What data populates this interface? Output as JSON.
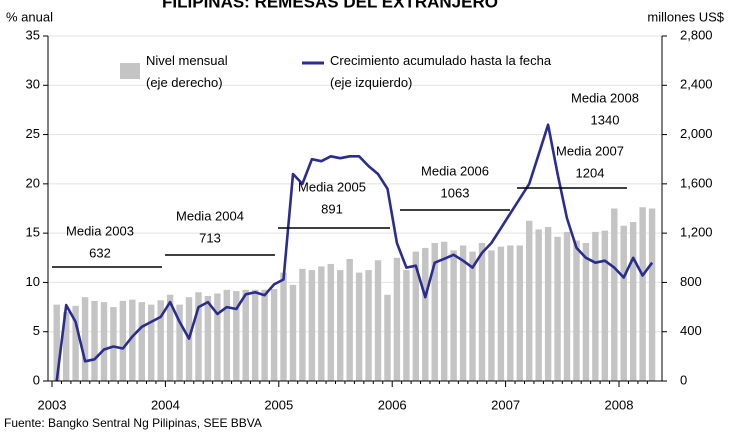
{
  "chart_data": {
    "type": "combo",
    "title": "FILIPINAS: REMESAS DEL EXTRANJERO",
    "y_label": "% anual",
    "y2_label": "millones US$",
    "source": "Fuente: Bangko Sentral Ng Pilipinas, SEE BBVA",
    "categories": [
      "2003",
      null,
      null,
      null,
      null,
      null,
      null,
      null,
      null,
      null,
      null,
      null,
      "2004",
      null,
      null,
      null,
      null,
      null,
      null,
      null,
      null,
      null,
      null,
      null,
      "2005",
      null,
      null,
      null,
      null,
      null,
      null,
      null,
      null,
      null,
      null,
      null,
      "2006",
      null,
      null,
      null,
      null,
      null,
      null,
      null,
      null,
      null,
      null,
      null,
      "2007",
      null,
      null,
      null,
      null,
      null,
      null,
      null,
      null,
      null,
      null,
      null,
      "2008",
      null,
      null,
      null
    ],
    "series": [
      {
        "name": "Nivel mensual (eje derecho)",
        "type": "bar",
        "axis": "y2",
        "color": "#c4c4c4",
        "values": [
          620,
          560,
          610,
          680,
          650,
          640,
          600,
          650,
          660,
          640,
          620,
          655,
          700,
          620,
          680,
          720,
          690,
          710,
          740,
          730,
          740,
          740,
          740,
          746,
          880,
          780,
          910,
          900,
          930,
          950,
          900,
          990,
          880,
          900,
          980,
          700,
          1000,
          900,
          1050,
          1080,
          1120,
          1130,
          1060,
          1100,
          1050,
          1120,
          1060,
          1090,
          1100,
          1100,
          1300,
          1230,
          1250,
          1170,
          1210,
          1140,
          1120,
          1210,
          1220,
          1400,
          1260,
          1290,
          1410,
          1400
        ]
      },
      {
        "name": "Crecimiento acumulado hasta la fecha (eje izquierdo)",
        "type": "line",
        "color": "#2b2d8e",
        "values": [
          0,
          7.7,
          6,
          2,
          2.2,
          3.2,
          3.5,
          3.3,
          4.5,
          5.5,
          6,
          6.5,
          8,
          6,
          4.3,
          7.5,
          8,
          6.8,
          7.5,
          7.3,
          8.8,
          9,
          8.7,
          9.8,
          10.3,
          21,
          20,
          22.5,
          22.3,
          22.8,
          22.6,
          22.8,
          22.8,
          21.8,
          21,
          19.5,
          14,
          11.5,
          11.7,
          8.5,
          12,
          12.4,
          12.8,
          12.2,
          11.5,
          13,
          14,
          15.5,
          17,
          18.5,
          20,
          23,
          26,
          21,
          16.5,
          13.5,
          12.5,
          12,
          12.2,
          11.5,
          10.5,
          12.5,
          10.7,
          12
        ]
      }
    ],
    "ylim": [
      0,
      35
    ],
    "yticks": [
      0,
      5,
      10,
      15,
      20,
      25,
      30,
      35
    ],
    "y2lim": [
      0,
      2800
    ],
    "y2ticks": [
      0,
      400,
      800,
      {
        "value": 1200,
        "label": "1,200"
      },
      {
        "value": 1600,
        "label": "1,600"
      },
      {
        "value": 2000,
        "label": "2,000"
      },
      {
        "value": 2400,
        "label": "2,400"
      },
      {
        "value": 2800,
        "label": "2,800"
      }
    ],
    "grid": true,
    "annotations": [
      {
        "text": "Media 2003",
        "value": 632
      },
      {
        "text": "Media 2004",
        "value": 713
      },
      {
        "text": "Media 2005",
        "value": 891
      },
      {
        "text": "Media 2006",
        "value": 1063
      },
      {
        "text": "Media 2007",
        "value": 1204
      },
      {
        "text": "Media 2008",
        "value": 1340
      }
    ]
  }
}
